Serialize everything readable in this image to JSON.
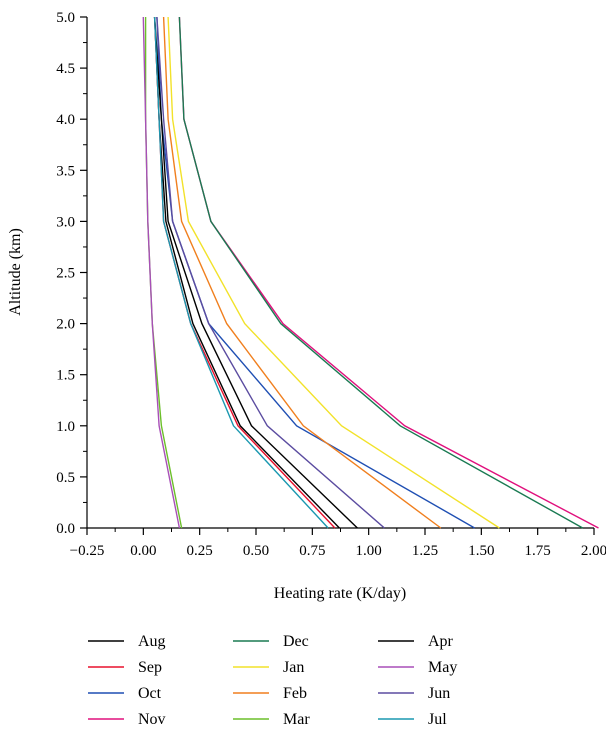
{
  "chart_data": {
    "type": "line",
    "xlabel": "Heating rate (K/day)",
    "ylabel": "Altitude (km)",
    "xlim": [
      -0.25,
      2.0
    ],
    "ylim": [
      0.0,
      5.0
    ],
    "x_ticks": [
      "−0.25",
      "0.00",
      "0.25",
      "0.50",
      "0.75",
      "1.00",
      "1.25",
      "1.50",
      "1.75",
      "2.00"
    ],
    "y_ticks": [
      "0.0",
      "0.5",
      "1.0",
      "1.5",
      "2.0",
      "2.5",
      "3.0",
      "3.5",
      "4.0",
      "4.5",
      "5.0"
    ],
    "altitudes": [
      0.0,
      1.0,
      2.0,
      3.0,
      4.0,
      5.0
    ],
    "series": [
      {
        "name": "Aug",
        "color": "#000000",
        "values": [
          0.87,
          0.43,
          0.22,
          0.1,
          0.07,
          0.05
        ]
      },
      {
        "name": "Sep",
        "color": "#e8112d",
        "values": [
          0.85,
          0.42,
          0.21,
          0.09,
          0.07,
          0.05
        ]
      },
      {
        "name": "Oct",
        "color": "#1f4fb3",
        "values": [
          1.47,
          0.68,
          0.29,
          0.13,
          0.08,
          0.06
        ]
      },
      {
        "name": "Nov",
        "color": "#e0107d",
        "values": [
          2.02,
          1.16,
          0.62,
          0.3,
          0.18,
          0.16
        ]
      },
      {
        "name": "Dec",
        "color": "#1a7a52",
        "values": [
          1.95,
          1.14,
          0.61,
          0.3,
          0.18,
          0.16
        ]
      },
      {
        "name": "Jan",
        "color": "#f2e22a",
        "values": [
          1.58,
          0.88,
          0.45,
          0.2,
          0.13,
          0.11
        ]
      },
      {
        "name": "Feb",
        "color": "#f07f1e",
        "values": [
          1.32,
          0.71,
          0.37,
          0.17,
          0.11,
          0.09
        ]
      },
      {
        "name": "Mar",
        "color": "#6cbf2a",
        "values": [
          0.17,
          0.08,
          0.04,
          0.02,
          0.01,
          0.01
        ]
      },
      {
        "name": "Apr",
        "color": "#000000",
        "values": [
          0.95,
          0.48,
          0.26,
          0.11,
          0.08,
          0.05
        ]
      },
      {
        "name": "May",
        "color": "#a84fb8",
        "values": [
          0.16,
          0.07,
          0.04,
          0.02,
          0.01,
          0.0
        ]
      },
      {
        "name": "Jun",
        "color": "#5b4ca0",
        "values": [
          1.07,
          0.55,
          0.29,
          0.13,
          0.09,
          0.06
        ]
      },
      {
        "name": "Jul",
        "color": "#1a98b0",
        "values": [
          0.82,
          0.4,
          0.21,
          0.09,
          0.07,
          0.05
        ]
      }
    ],
    "legend": {
      "placement": "bottom",
      "columns": [
        [
          "Aug",
          "Sep",
          "Oct",
          "Nov"
        ],
        [
          "Dec",
          "Jan",
          "Feb",
          "Mar"
        ],
        [
          "Apr",
          "May",
          "Jun",
          "Jul"
        ]
      ]
    },
    "grid": false
  }
}
